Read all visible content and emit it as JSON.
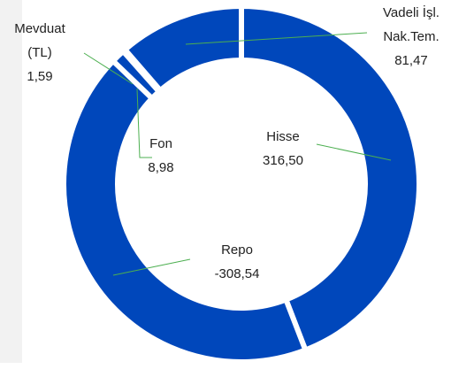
{
  "chart_data": {
    "type": "donut",
    "categories": [
      "Hisse",
      "Repo",
      "Fon",
      "Mevduat (TL)",
      "Vadeli İşl. Nak.Tem."
    ],
    "values": [
      316.5,
      -308.54,
      8.98,
      1.59,
      81.47
    ],
    "value_labels": [
      "316,50",
      "-308,54",
      "8,98",
      "1,59",
      "81,47"
    ],
    "color": "#0047bb"
  }
}
